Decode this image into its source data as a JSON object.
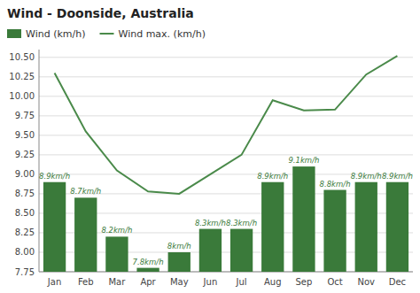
{
  "chart_data": {
    "type": "bar",
    "title": "Wind - Doonside, Australia",
    "categories": [
      "Jan",
      "Feb",
      "Mar",
      "Apr",
      "May",
      "Jun",
      "Jul",
      "Aug",
      "Sep",
      "Oct",
      "Nov",
      "Dec"
    ],
    "series": [
      {
        "name": "Wind (km/h)",
        "type": "bar",
        "color": "#3a7a3a",
        "values": [
          8.9,
          8.7,
          8.2,
          7.8,
          8.0,
          8.3,
          8.3,
          8.9,
          9.1,
          8.8,
          8.9,
          8.9
        ],
        "value_labels": [
          "8.9km/h",
          "8.7km/h",
          "8.2km/h",
          "7.8km/h",
          "8km/h",
          "8.3km/h",
          "8.3km/h",
          "8.9km/h",
          "9.1km/h",
          "8.8km/h",
          "8.9km/h",
          "8.9km/h"
        ]
      },
      {
        "name": "Wind max. (km/h)",
        "type": "line",
        "color": "#4a8a4a",
        "values": [
          10.3,
          9.55,
          9.05,
          8.78,
          8.75,
          9.0,
          9.25,
          9.95,
          9.82,
          9.83,
          10.28,
          10.52
        ]
      }
    ],
    "ylim": [
      7.75,
      10.6
    ],
    "yticks": [
      7.75,
      {
        "value": 8.0,
        "label": "8.00"
      },
      8.25,
      {
        "value": 8.5,
        "label": "8.50"
      },
      8.75,
      {
        "value": 9.0,
        "label": "9.00"
      },
      9.25,
      {
        "value": 9.5,
        "label": "9.50"
      },
      9.75,
      {
        "value": 10.0,
        "label": "10.00"
      },
      10.25,
      {
        "value": 10.5,
        "label": "10.50"
      }
    ],
    "grid": true,
    "legend": "top"
  }
}
